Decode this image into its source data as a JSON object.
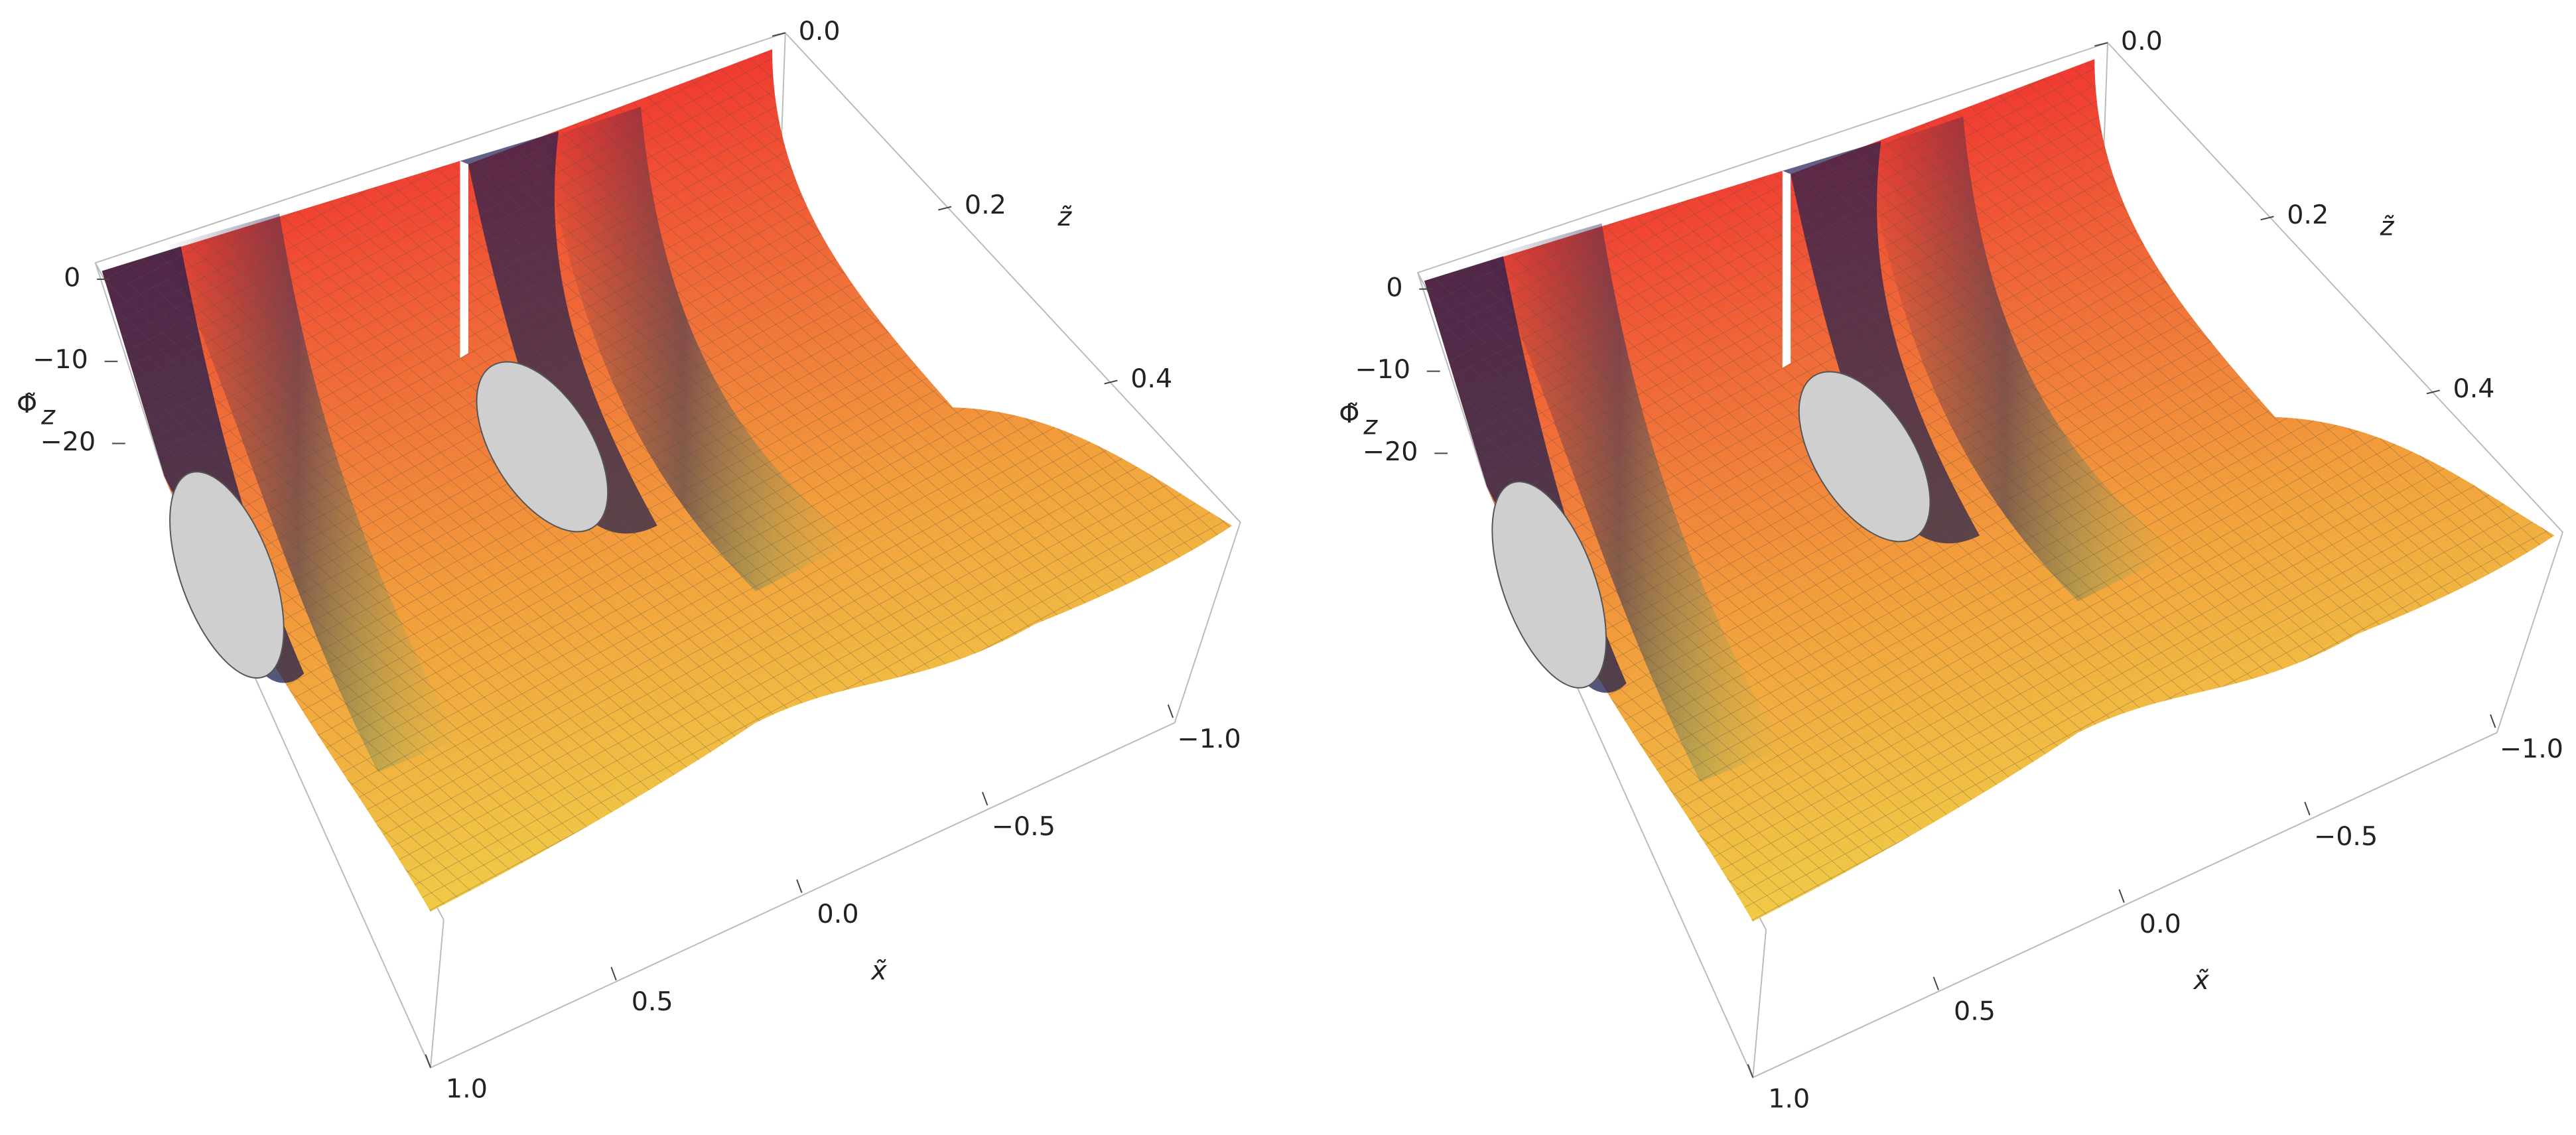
{
  "chart_data": [
    {
      "type": "surface3d",
      "xlabel": "x̃",
      "zlabel": "z̃",
      "ylabel": "Φ̃",
      "ylabel_sub": "z",
      "xlim": [
        1,
        -1
      ],
      "xticks": [
        {
          "value": 1,
          "label": "1.0"
        },
        0.5,
        {
          "value": 0,
          "label": "0.0"
        },
        {
          "value": -0.5,
          "label": "−0.5"
        },
        {
          "value": -1,
          "label": "−1.0"
        }
      ],
      "zlim": [
        0,
        0.55
      ],
      "zticks": [
        {
          "value": 0,
          "label": "0.0"
        },
        0.2,
        0.4
      ],
      "ylim": [
        -24,
        2
      ],
      "yticks": [
        0,
        {
          "value": -10,
          "label": "−10"
        },
        {
          "value": -20,
          "label": "−20"
        }
      ]
    },
    {
      "type": "surface3d",
      "xlabel": "x̃",
      "zlabel": "z̃",
      "ylabel": "Φ̃",
      "ylabel_sub": "z",
      "xlim": [
        1,
        -1
      ],
      "xticks": [
        {
          "value": 1,
          "label": "1.0"
        },
        0.5,
        {
          "value": 0,
          "label": "0.0"
        },
        {
          "value": -0.5,
          "label": "−0.5"
        },
        {
          "value": -1,
          "label": "−1.0"
        }
      ],
      "zlim": [
        0,
        0.55
      ],
      "zticks": [
        {
          "value": 0,
          "label": "0.0"
        },
        0.2,
        0.4
      ],
      "ylim": [
        -24,
        2
      ],
      "yticks": [
        0,
        {
          "value": -10,
          "label": "−10"
        },
        {
          "value": -20,
          "label": "−20"
        }
      ]
    }
  ]
}
